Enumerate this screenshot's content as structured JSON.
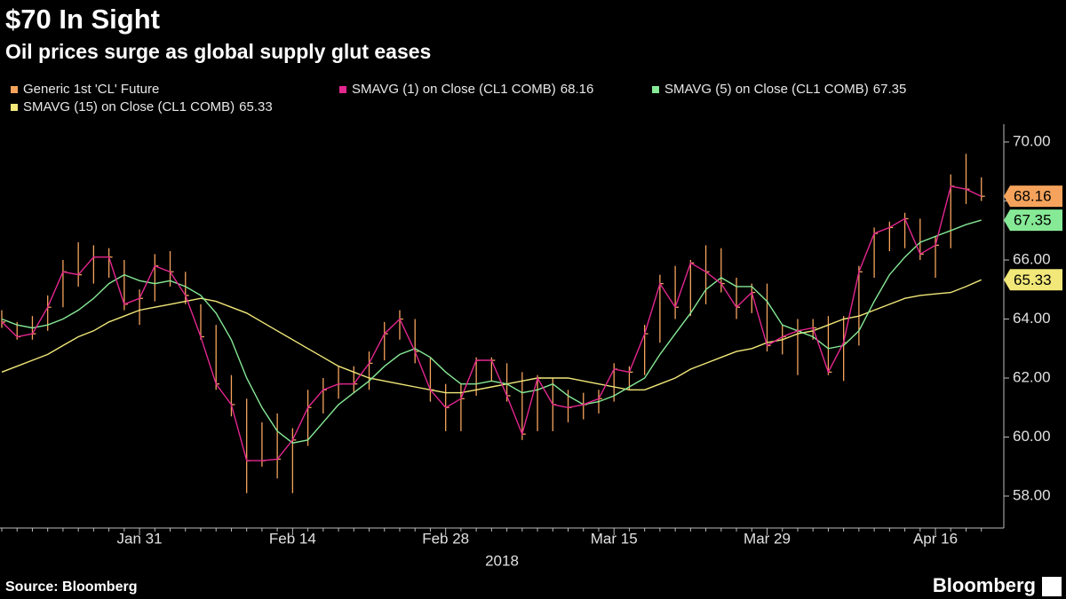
{
  "chart_data": {
    "type": "ohlc",
    "title": "$70 In Sight",
    "subtitle": "Oil prices surge as global supply glut eases",
    "x_label": "2018",
    "source": "Source: Bloomberg",
    "brand": "Bloomberg",
    "categories": [
      null,
      null,
      null,
      null,
      null,
      null,
      null,
      null,
      null,
      "Jan 31",
      null,
      null,
      null,
      null,
      null,
      null,
      null,
      null,
      null,
      "Feb 14",
      null,
      null,
      null,
      null,
      null,
      null,
      null,
      null,
      null,
      "Feb 28",
      null,
      null,
      null,
      null,
      null,
      null,
      null,
      null,
      null,
      null,
      "Mar 15",
      null,
      null,
      null,
      null,
      null,
      null,
      null,
      null,
      null,
      "Mar 29",
      null,
      null,
      null,
      null,
      null,
      null,
      null,
      null,
      null,
      null,
      "Apr 16",
      null,
      null,
      null
    ],
    "ylim": [
      57,
      71
    ],
    "yticks": [
      {
        "value": 58,
        "label": "58.00"
      },
      {
        "value": 60,
        "label": "60.00"
      },
      {
        "value": 62,
        "label": "62.00"
      },
      {
        "value": 64,
        "label": "64.00"
      },
      {
        "value": 66,
        "label": "66.00"
      },
      {
        "value": 68,
        "label": "68.00"
      },
      {
        "value": 70,
        "label": "70.00"
      }
    ],
    "series": [
      {
        "name": "Generic 1st 'CL' Future",
        "color": "#f5a35c",
        "high": [
          64.3,
          63.9,
          64.1,
          64.8,
          66.0,
          66.6,
          66.5,
          66.4,
          66.0,
          65.0,
          66.2,
          66.3,
          65.6,
          64.5,
          63.8,
          62.1,
          61.3,
          60.5,
          60.8,
          60.3,
          61.6,
          62.0,
          62.4,
          62.4,
          62.9,
          63.9,
          64.3,
          64.0,
          62.7,
          61.8,
          61.8,
          62.7,
          62.7,
          62.5,
          62.2,
          62.1,
          62.0,
          61.6,
          61.5,
          61.6,
          62.5,
          62.4,
          63.8,
          65.5,
          65.8,
          66.0,
          66.5,
          66.4,
          65.4,
          65.2,
          65.2,
          63.8,
          64.0,
          64.0,
          64.1,
          64.1,
          65.8,
          67.1,
          67.3,
          67.6,
          67.4,
          66.8,
          68.9,
          69.6,
          68.8
        ],
        "low": [
          63.7,
          63.3,
          63.3,
          63.6,
          64.4,
          65.1,
          65.2,
          65.4,
          64.3,
          63.8,
          64.6,
          65.1,
          64.5,
          63.3,
          61.6,
          60.7,
          58.1,
          59.0,
          58.6,
          58.1,
          59.7,
          60.8,
          61.3,
          61.5,
          61.6,
          62.6,
          63.3,
          62.5,
          61.2,
          60.2,
          60.2,
          61.4,
          61.9,
          61.2,
          59.9,
          60.2,
          60.2,
          60.5,
          60.6,
          60.8,
          61.2,
          61.6,
          62.1,
          63.2,
          64.0,
          64.1,
          64.5,
          64.9,
          64.0,
          64.2,
          62.9,
          62.8,
          62.1,
          63.3,
          62.1,
          61.9,
          63.1,
          65.4,
          66.3,
          66.4,
          66.0,
          65.4,
          66.4,
          67.9,
          68.0
        ],
        "close": [
          63.9,
          63.4,
          63.5,
          64.4,
          65.6,
          65.5,
          66.1,
          66.1,
          64.5,
          64.7,
          65.8,
          65.6,
          64.8,
          63.4,
          61.8,
          61.1,
          59.2,
          59.2,
          59.25,
          59.9,
          61.0,
          61.6,
          61.8,
          61.8,
          62.5,
          63.5,
          64.0,
          62.9,
          61.6,
          61.0,
          61.3,
          62.6,
          62.6,
          61.4,
          60.1,
          62.0,
          61.1,
          61.0,
          61.1,
          61.3,
          62.3,
          62.2,
          63.5,
          65.2,
          64.4,
          65.9,
          65.6,
          65.2,
          64.4,
          64.9,
          63.1,
          63.4,
          63.6,
          63.7,
          62.2,
          63.2,
          65.6,
          66.9,
          67.1,
          67.4,
          66.2,
          66.5,
          68.5,
          68.4,
          68.16
        ]
      },
      {
        "name": "SMAVG (1) on Close (CL1 COMB)",
        "color": "#e4268f",
        "values": [
          63.9,
          63.4,
          63.5,
          64.4,
          65.6,
          65.5,
          66.1,
          66.1,
          64.5,
          64.7,
          65.8,
          65.6,
          64.8,
          63.4,
          61.8,
          61.1,
          59.2,
          59.2,
          59.25,
          59.9,
          61.0,
          61.6,
          61.8,
          61.8,
          62.5,
          63.5,
          64.0,
          62.9,
          61.6,
          61.0,
          61.3,
          62.6,
          62.6,
          61.4,
          60.1,
          62.0,
          61.1,
          61.0,
          61.1,
          61.3,
          62.3,
          62.2,
          63.5,
          65.2,
          64.4,
          65.9,
          65.6,
          65.2,
          64.4,
          64.9,
          63.1,
          63.4,
          63.6,
          63.7,
          62.2,
          63.2,
          65.6,
          66.9,
          67.1,
          67.4,
          66.2,
          66.5,
          68.5,
          68.4,
          68.16
        ]
      },
      {
        "name": "SMAVG (5) on Close (CL1 COMB)",
        "color": "#86e996",
        "values": [
          64.0,
          63.8,
          63.7,
          63.8,
          64.0,
          64.3,
          64.7,
          65.2,
          65.5,
          65.3,
          65.2,
          65.3,
          65.1,
          64.8,
          64.2,
          63.3,
          62.0,
          61.0,
          60.2,
          59.8,
          59.9,
          60.5,
          61.1,
          61.5,
          61.9,
          62.4,
          62.8,
          63.0,
          62.7,
          62.2,
          61.8,
          61.8,
          61.9,
          61.8,
          61.5,
          61.6,
          61.8,
          61.4,
          61.1,
          61.2,
          61.4,
          61.7,
          62.0,
          62.8,
          63.5,
          64.2,
          65.0,
          65.4,
          65.1,
          65.1,
          64.6,
          63.8,
          63.6,
          63.4,
          63.0,
          63.1,
          63.6,
          64.6,
          65.5,
          66.1,
          66.6,
          66.8,
          67.0,
          67.2,
          67.35
        ]
      },
      {
        "name": "SMAVG (15) on Close (CL1 COMB)",
        "color": "#f2e879",
        "values": [
          62.2,
          62.4,
          62.6,
          62.8,
          63.1,
          63.4,
          63.6,
          63.9,
          64.1,
          64.3,
          64.4,
          64.5,
          64.6,
          64.7,
          64.6,
          64.4,
          64.2,
          63.9,
          63.6,
          63.3,
          63.0,
          62.7,
          62.4,
          62.2,
          62.0,
          61.9,
          61.8,
          61.7,
          61.6,
          61.5,
          61.5,
          61.6,
          61.7,
          61.8,
          61.9,
          62.0,
          62.0,
          62.0,
          61.9,
          61.8,
          61.7,
          61.6,
          61.6,
          61.8,
          62.0,
          62.3,
          62.5,
          62.7,
          62.9,
          63.0,
          63.2,
          63.3,
          63.5,
          63.6,
          63.8,
          64.0,
          64.1,
          64.3,
          64.5,
          64.7,
          64.8,
          64.85,
          64.9,
          65.1,
          65.33
        ]
      }
    ]
  }
}
